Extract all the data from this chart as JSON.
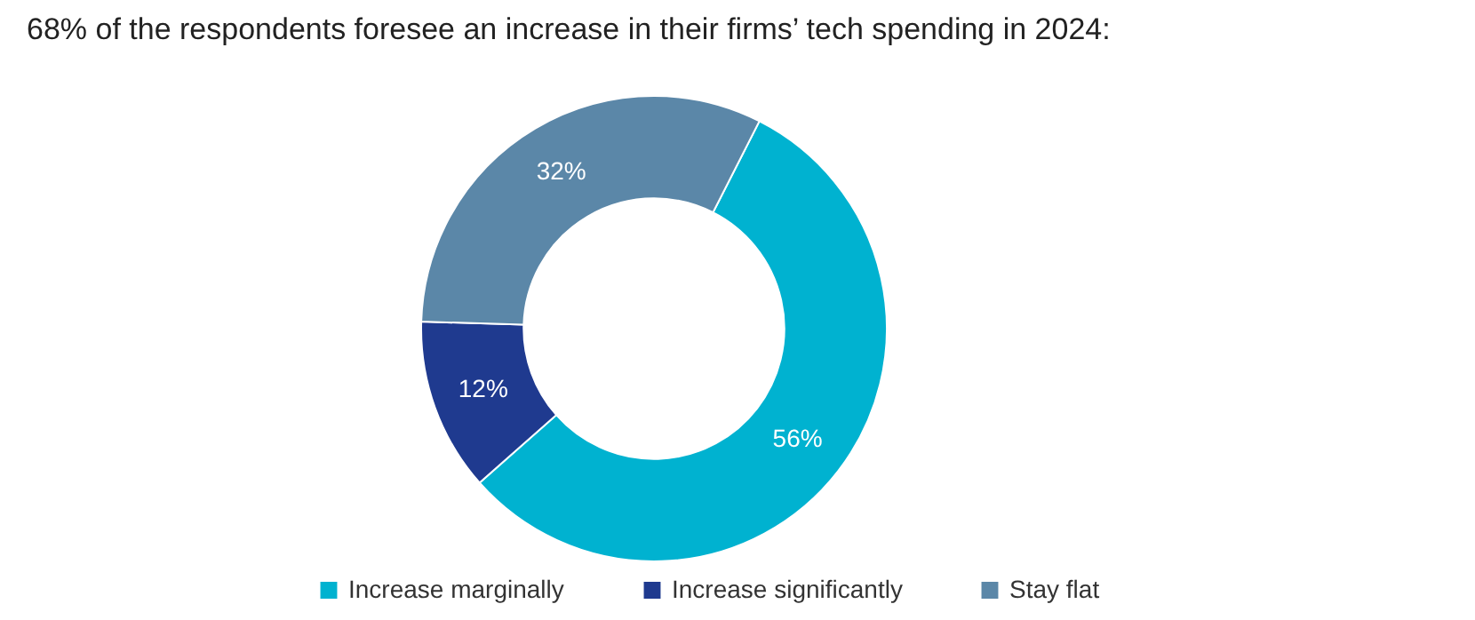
{
  "chart_data": {
    "type": "donut",
    "title": "68% of the respondents foresee an increase in their firms’ tech spending in 2024:",
    "categories": [
      "Increase marginally",
      "Increase significantly",
      "Stay flat"
    ],
    "values": [
      56,
      12,
      32
    ],
    "colors": [
      "#00b2d0",
      "#1f3a8f",
      "#5b87a8"
    ],
    "value_labels": [
      "56%",
      "12%",
      "32%"
    ],
    "legend": "bottom"
  }
}
